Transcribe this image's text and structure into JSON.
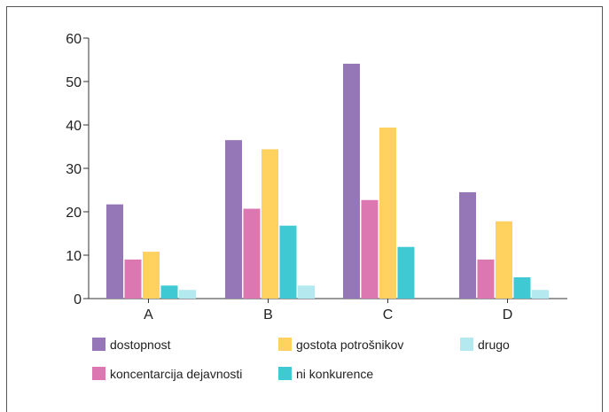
{
  "chart_data": {
    "type": "bar",
    "categories": [
      "A",
      "B",
      "C",
      "D"
    ],
    "ylim": [
      0,
      60
    ],
    "yticks": [
      0,
      10,
      20,
      30,
      40,
      50,
      60
    ],
    "grid": false,
    "legend_position": "bottom",
    "series": [
      {
        "name": "dostopnost",
        "color": "#9577b8",
        "values": [
          21.7,
          36.5,
          54.1,
          24.5
        ]
      },
      {
        "name": "koncentarcija dejavnosti",
        "color": "#dc77b2",
        "values": [
          9.0,
          20.7,
          22.7,
          9.0
        ]
      },
      {
        "name": "gostota potrošnikov",
        "color": "#ffd15f",
        "values": [
          10.8,
          34.4,
          39.4,
          17.8
        ]
      },
      {
        "name": "ni konkurence",
        "color": "#3fcad3",
        "values": [
          3.0,
          16.8,
          11.9,
          4.9
        ]
      },
      {
        "name": "drugo",
        "color": "#b3e9ef",
        "values": [
          2.0,
          3.0,
          0,
          2.0
        ]
      }
    ]
  }
}
